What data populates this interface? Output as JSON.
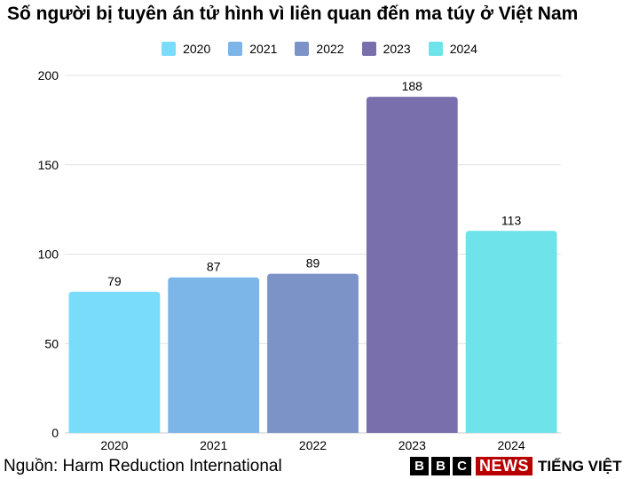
{
  "title": "Số người bị tuyên án tử hình vì liên quan đến ma túy ở Việt Nam",
  "source": "Nguồn: Harm Reduction International",
  "brand": {
    "letters": [
      "B",
      "B",
      "C"
    ],
    "news": "NEWS",
    "sub": "TIẾNG VIỆT"
  },
  "chart_data": {
    "type": "bar",
    "title": "Số người bị tuyên án tử hình vì liên quan đến ma túy ở Việt Nam",
    "categories": [
      "2020",
      "2021",
      "2022",
      "2023",
      "2024"
    ],
    "values": [
      79,
      87,
      89,
      188,
      113
    ],
    "colors": [
      "#79dcfb",
      "#7cb5e8",
      "#7b93c6",
      "#7a6fad",
      "#6ee3e9"
    ],
    "legend": [
      "2020",
      "2021",
      "2022",
      "2023",
      "2024"
    ],
    "legend_position": "top-center",
    "ylim": [
      0,
      200
    ],
    "yticks": [
      0,
      50,
      100,
      150,
      200
    ],
    "grid": true,
    "xlabel": "",
    "ylabel": ""
  }
}
